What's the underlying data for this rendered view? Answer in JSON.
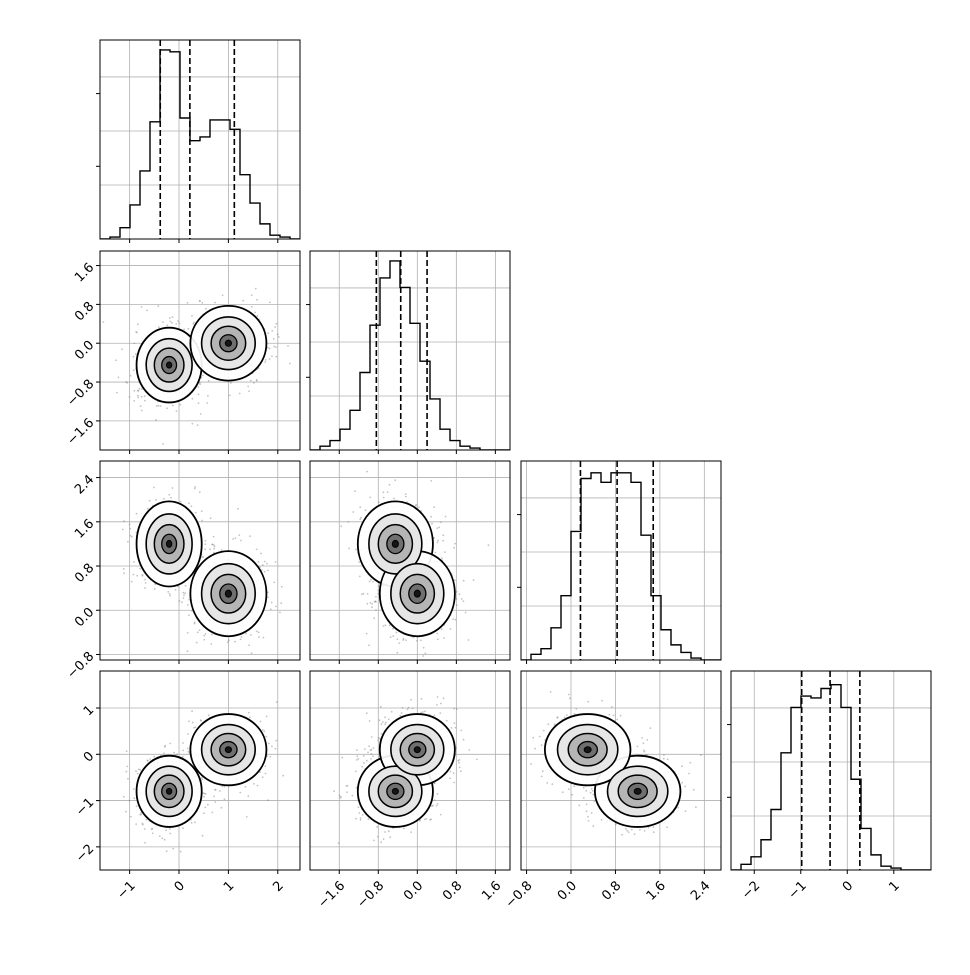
{
  "chart_data": {
    "type": "corner",
    "colors": {
      "ink": "#000000",
      "grid": "#b0b0b0",
      "frame": "#000000",
      "scatter": "#7a7a7a"
    },
    "grid": true,
    "variables": [
      {
        "range": [
          -1.6,
          2.45
        ],
        "ticks": [
          -1,
          0,
          1,
          2
        ],
        "tick_labels": [
          "−1",
          "0",
          "1",
          "2"
        ],
        "quantiles": [
          -0.38,
          0.22,
          1.12
        ],
        "hist": [
          0,
          0.01,
          0.06,
          0.18,
          0.36,
          0.62,
          1.0,
          0.99,
          0.64,
          0.52,
          0.54,
          0.63,
          0.63,
          0.58,
          0.34,
          0.19,
          0.08,
          0.02,
          0.01,
          0
        ]
      },
      {
        "range": [
          -2.2,
          1.9
        ],
        "ticks": [
          -1.6,
          -0.8,
          0.0,
          0.8,
          1.6
        ],
        "tick_labels": [
          "−1.6",
          "−0.8",
          "0.0",
          "0.8",
          "1.6"
        ],
        "quantiles": [
          -0.84,
          -0.34,
          0.2
        ],
        "hist": [
          0,
          0.02,
          0.05,
          0.11,
          0.21,
          0.41,
          0.66,
          0.91,
          1.0,
          0.86,
          0.67,
          0.47,
          0.27,
          0.11,
          0.05,
          0.02,
          0.01,
          0,
          0,
          0
        ]
      },
      {
        "range": [
          -0.9,
          2.7
        ],
        "ticks": [
          -0.8,
          0.0,
          0.8,
          1.6,
          2.4
        ],
        "tick_labels": [
          "−0.8",
          "0.0",
          "0.8",
          "1.6",
          "2.4"
        ],
        "quantiles": [
          0.17,
          0.83,
          1.48
        ],
        "hist": [
          0,
          0.03,
          0.06,
          0.17,
          0.34,
          0.68,
          0.96,
          0.99,
          0.94,
          0.99,
          0.99,
          0.94,
          0.66,
          0.34,
          0.16,
          0.08,
          0.04,
          0.01,
          0,
          0
        ]
      },
      {
        "range": [
          -2.5,
          1.8
        ],
        "ticks": [
          -2,
          -1,
          0,
          1
        ],
        "tick_labels": [
          "−2",
          "−1",
          "0",
          "1"
        ],
        "quantiles": [
          -0.98,
          -0.37,
          0.27
        ],
        "hist": [
          0,
          0.03,
          0.07,
          0.16,
          0.32,
          0.62,
          0.86,
          0.92,
          0.91,
          0.96,
          0.98,
          0.86,
          0.48,
          0.22,
          0.08,
          0.02,
          0.01,
          0,
          0,
          0
        ]
      }
    ],
    "modes": [
      {
        "weight": 0.5,
        "mean": [
          -0.2,
          -0.45,
          1.2,
          -0.8
        ],
        "sd": [
          0.3,
          0.35,
          0.35,
          0.35
        ]
      },
      {
        "weight": 0.5,
        "mean": [
          1.0,
          0.0,
          0.3,
          0.1
        ],
        "sd": [
          0.35,
          0.35,
          0.35,
          0.35
        ]
      }
    ]
  }
}
